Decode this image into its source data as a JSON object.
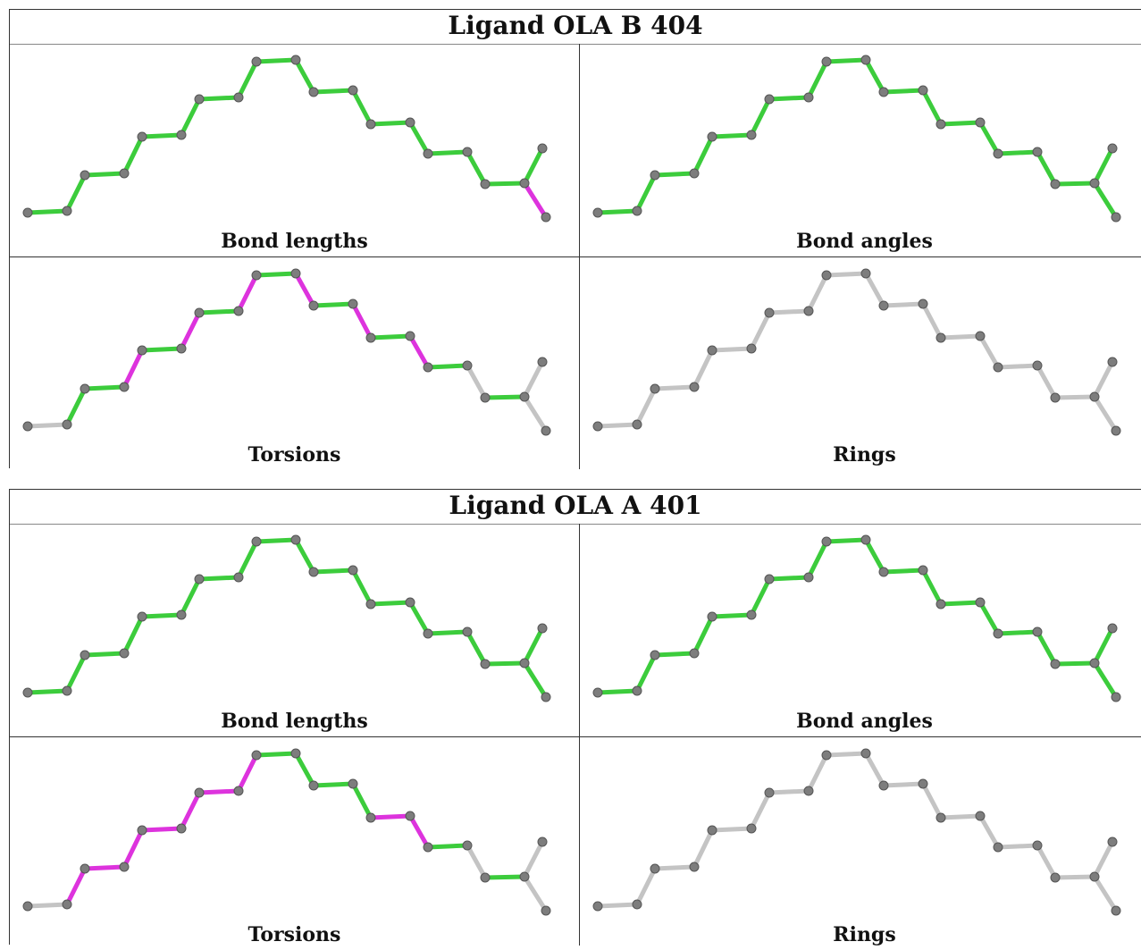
{
  "colors": {
    "ok": "#3ccc3c",
    "outlier": "#dd33dd",
    "neutral": "#c4c4c4",
    "atom": "#7d7d7d"
  },
  "panels": [
    {
      "title": "Ligand OLA B 404",
      "cells": [
        {
          "label": "Bond lengths",
          "bond_colors": [
            "ok",
            "ok",
            "ok",
            "ok",
            "ok",
            "ok",
            "ok",
            "ok",
            "ok",
            "ok",
            "ok",
            "ok",
            "ok",
            "ok",
            "ok",
            "ok",
            "outlier"
          ]
        },
        {
          "label": "Bond angles",
          "bond_colors": [
            "ok",
            "ok",
            "ok",
            "ok",
            "ok",
            "ok",
            "ok",
            "ok",
            "ok",
            "ok",
            "ok",
            "ok",
            "ok",
            "ok",
            "ok",
            "ok",
            "ok"
          ]
        },
        {
          "label": "Torsions",
          "bond_colors": [
            "neutral",
            "ok",
            "ok",
            "outlier",
            "ok",
            "outlier",
            "ok",
            "outlier",
            "ok",
            "outlier",
            "ok",
            "outlier",
            "ok",
            "outlier",
            "ok",
            "neutral",
            "neutral"
          ]
        },
        {
          "label": "Rings",
          "bond_colors": [
            "neutral",
            "neutral",
            "neutral",
            "neutral",
            "neutral",
            "neutral",
            "neutral",
            "neutral",
            "neutral",
            "neutral",
            "neutral",
            "neutral",
            "neutral",
            "neutral",
            "neutral",
            "neutral",
            "neutral"
          ]
        }
      ]
    },
    {
      "title": "Ligand OLA A 401",
      "cells": [
        {
          "label": "Bond lengths",
          "bond_colors": [
            "ok",
            "ok",
            "ok",
            "ok",
            "ok",
            "ok",
            "ok",
            "ok",
            "ok",
            "ok",
            "ok",
            "ok",
            "ok",
            "ok",
            "ok",
            "ok",
            "ok"
          ]
        },
        {
          "label": "Bond angles",
          "bond_colors": [
            "ok",
            "ok",
            "ok",
            "ok",
            "ok",
            "ok",
            "ok",
            "ok",
            "ok",
            "ok",
            "ok",
            "ok",
            "ok",
            "ok",
            "ok",
            "ok",
            "ok"
          ]
        },
        {
          "label": "Torsions",
          "bond_colors": [
            "neutral",
            "outlier",
            "outlier",
            "outlier",
            "outlier",
            "outlier",
            "outlier",
            "outlier",
            "ok",
            "ok",
            "ok",
            "ok",
            "outlier",
            "outlier",
            "ok",
            "neutral",
            "neutral"
          ]
        },
        {
          "label": "Rings",
          "bond_colors": [
            "neutral",
            "neutral",
            "neutral",
            "neutral",
            "neutral",
            "neutral",
            "neutral",
            "neutral",
            "neutral",
            "neutral",
            "neutral",
            "neutral",
            "neutral",
            "neutral",
            "neutral",
            "neutral",
            "neutral"
          ]
        }
      ]
    }
  ]
}
